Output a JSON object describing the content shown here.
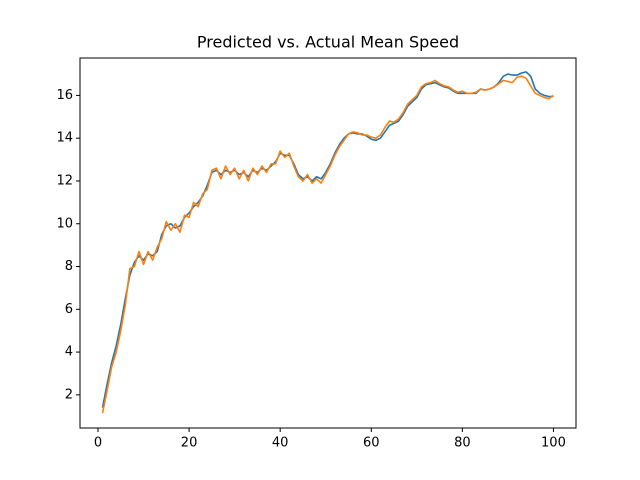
{
  "chart_data": {
    "type": "line",
    "title": "Predicted vs. Actual Mean Speed",
    "x": [
      1,
      2,
      3,
      4,
      5,
      6,
      7,
      8,
      9,
      10,
      11,
      12,
      13,
      14,
      15,
      16,
      17,
      18,
      19,
      20,
      21,
      22,
      23,
      24,
      25,
      26,
      27,
      28,
      29,
      30,
      31,
      32,
      33,
      34,
      35,
      36,
      37,
      38,
      39,
      40,
      41,
      42,
      43,
      44,
      45,
      46,
      47,
      48,
      49,
      50,
      51,
      52,
      53,
      54,
      55,
      56,
      57,
      58,
      59,
      60,
      61,
      62,
      63,
      64,
      65,
      66,
      67,
      68,
      69,
      70,
      71,
      72,
      73,
      74,
      75,
      76,
      77,
      78,
      79,
      80,
      81,
      82,
      83,
      84,
      85,
      86,
      87,
      88,
      89,
      90,
      91,
      92,
      93,
      94,
      95,
      96,
      97,
      98,
      99,
      100
    ],
    "series": [
      {
        "color": "#1f77b4",
        "values": [
          1.4,
          2.5,
          3.5,
          4.3,
          5.3,
          6.5,
          7.6,
          8.2,
          8.5,
          8.3,
          8.6,
          8.5,
          8.7,
          9.5,
          9.9,
          10.0,
          9.8,
          9.9,
          10.3,
          10.5,
          10.8,
          11.0,
          11.3,
          11.8,
          12.4,
          12.5,
          12.3,
          12.5,
          12.4,
          12.5,
          12.3,
          12.4,
          12.2,
          12.5,
          12.4,
          12.6,
          12.5,
          12.7,
          12.9,
          13.3,
          13.2,
          13.2,
          12.8,
          12.3,
          12.1,
          12.2,
          12.0,
          12.2,
          12.1,
          12.4,
          12.8,
          13.3,
          13.7,
          14.0,
          14.2,
          14.25,
          14.2,
          14.2,
          14.1,
          13.95,
          13.9,
          14.0,
          14.3,
          14.6,
          14.7,
          14.8,
          15.1,
          15.5,
          15.7,
          15.9,
          16.3,
          16.5,
          16.55,
          16.6,
          16.5,
          16.4,
          16.35,
          16.2,
          16.1,
          16.1,
          16.1,
          16.1,
          16.1,
          16.3,
          16.25,
          16.3,
          16.4,
          16.6,
          16.9,
          17.0,
          16.95,
          16.95,
          17.05,
          17.1,
          16.9,
          16.3,
          16.1,
          16.0,
          15.95,
          15.95
        ]
      },
      {
        "color": "#ff7f0e",
        "values": [
          1.15,
          2.2,
          3.3,
          4.0,
          5.0,
          6.2,
          7.9,
          8.0,
          8.7,
          8.1,
          8.7,
          8.3,
          8.9,
          9.3,
          10.1,
          9.7,
          10.0,
          9.6,
          10.4,
          10.3,
          11.0,
          10.8,
          11.4,
          11.6,
          12.5,
          12.6,
          12.1,
          12.7,
          12.3,
          12.6,
          12.1,
          12.5,
          12.0,
          12.6,
          12.3,
          12.7,
          12.4,
          12.8,
          12.8,
          13.4,
          13.1,
          13.3,
          12.7,
          12.2,
          12.0,
          12.3,
          11.9,
          12.1,
          11.9,
          12.3,
          12.7,
          13.2,
          13.6,
          13.9,
          14.2,
          14.3,
          14.25,
          14.15,
          14.15,
          14.05,
          14.0,
          14.15,
          14.5,
          14.8,
          14.75,
          14.9,
          15.2,
          15.6,
          15.8,
          16.0,
          16.4,
          16.55,
          16.6,
          16.7,
          16.55,
          16.45,
          16.4,
          16.25,
          16.15,
          16.2,
          16.1,
          16.1,
          16.15,
          16.3,
          16.25,
          16.3,
          16.4,
          16.55,
          16.7,
          16.65,
          16.6,
          16.85,
          16.9,
          16.8,
          16.45,
          16.1,
          16.0,
          15.9,
          15.85,
          16.0
        ]
      }
    ],
    "xlim": [
      -3.95,
      104.95
    ],
    "ylim": [
      0.45,
      17.75
    ],
    "xticks": [
      0,
      20,
      40,
      60,
      80,
      100
    ],
    "yticks": [
      2,
      4,
      6,
      8,
      10,
      12,
      14,
      16
    ]
  }
}
